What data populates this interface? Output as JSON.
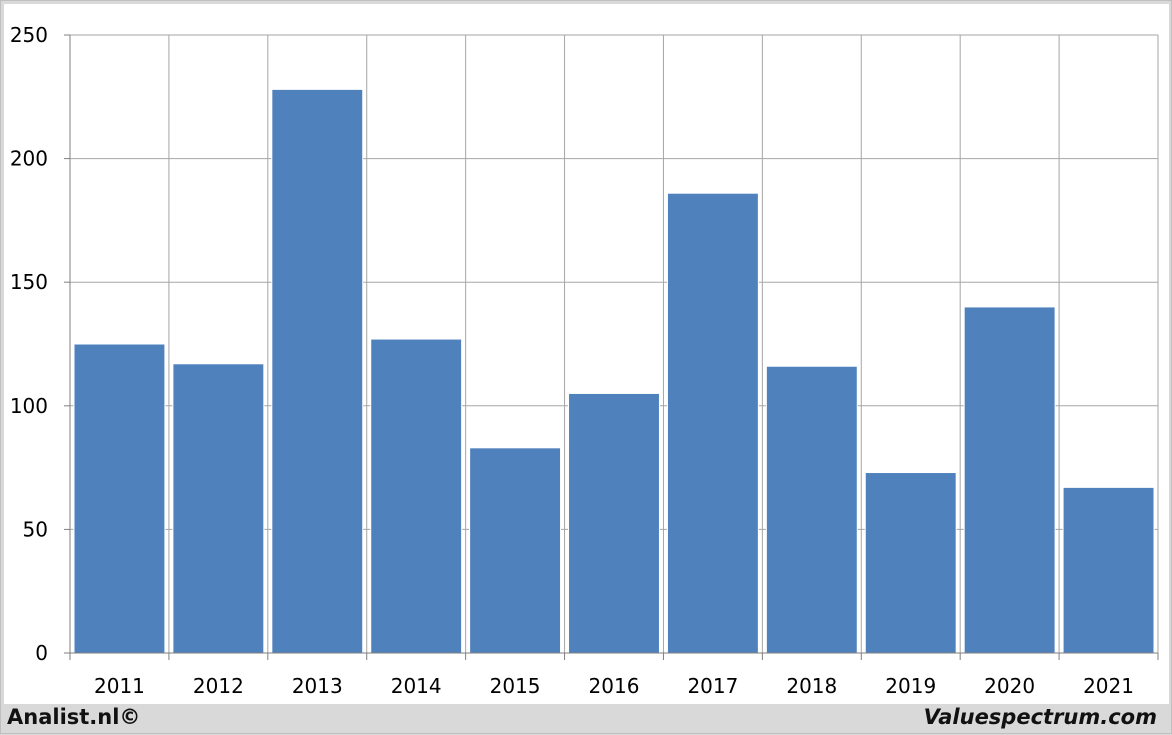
{
  "chart_data": {
    "type": "bar",
    "categories": [
      "2011",
      "2012",
      "2013",
      "2014",
      "2015",
      "2016",
      "2017",
      "2018",
      "2019",
      "2020",
      "2021"
    ],
    "values": [
      125,
      117,
      228,
      127,
      83,
      105,
      186,
      116,
      73,
      140,
      67
    ],
    "ylim": [
      0,
      250
    ],
    "yticks": [
      0,
      50,
      100,
      150,
      200,
      250
    ],
    "grid": true,
    "bar_color": "#4f81bd",
    "grid_color": "#a6a6a6",
    "title": "",
    "xlabel": "",
    "ylabel": ""
  },
  "footer": {
    "left": "Analist.nl©",
    "right": "Valuespectrum.com"
  }
}
